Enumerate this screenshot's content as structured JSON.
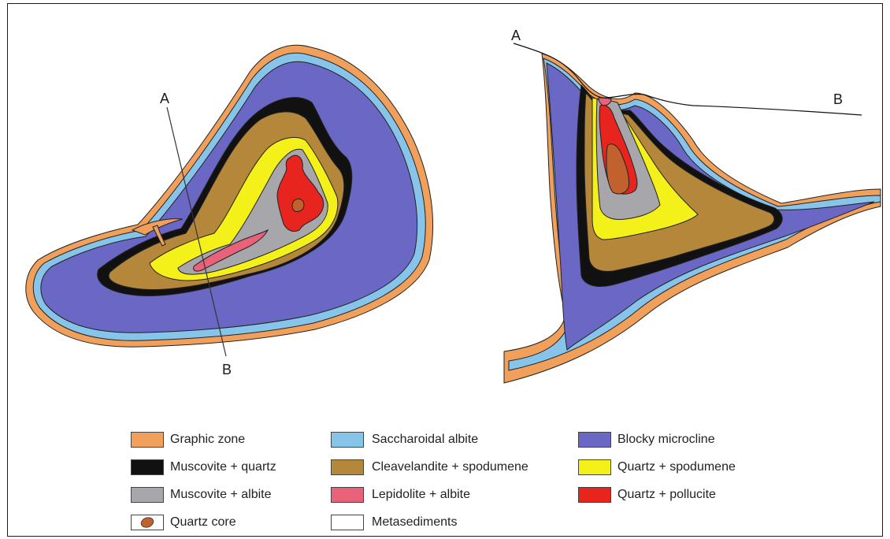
{
  "plan_view": {
    "section_start_label": "A",
    "section_end_label": "B"
  },
  "cross_section": {
    "section_start_label": "A",
    "section_end_label": "B"
  },
  "colors": {
    "graphic_zone": "#f0a05a",
    "saccharoidal_albite": "#86c4ea",
    "blocky_microcline": "#6a68c4",
    "muscovite_quartz": "#111111",
    "cleavelandite_spodumene": "#b5873a",
    "quartz_spodumene": "#f4f01a",
    "muscovite_albite": "#a7a7ab",
    "lepidolite_albite": "#e8627a",
    "quartz_pollucite": "#e8241e",
    "quartz_core": "#c0612e",
    "metasediments": "#ffffff"
  },
  "legend": {
    "graphic_zone": "Graphic zone",
    "saccharoidal_albite": "Saccharoidal albite",
    "blocky_microcline": "Blocky microcline",
    "muscovite_quartz": "Muscovite + quartz",
    "cleavelandite_spodumene": "Cleavelandite + spodumene",
    "quartz_spodumene": "Quartz + spodumene",
    "muscovite_albite": "Muscovite + albite",
    "lepidolite_albite": "Lepidolite + albite",
    "quartz_pollucite": "Quartz + pollucite",
    "quartz_core": "Quartz core",
    "metasediments": "Metasediments"
  }
}
